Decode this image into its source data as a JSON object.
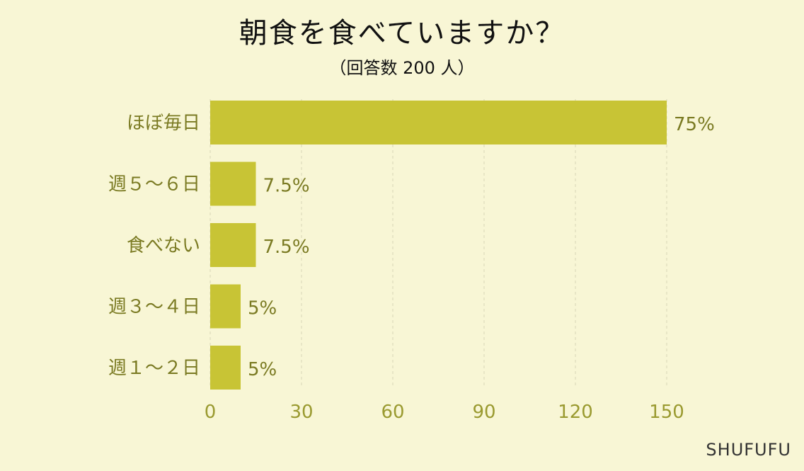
{
  "chart_data": {
    "type": "bar",
    "orientation": "horizontal",
    "title": "朝食を食べていますか？",
    "subtitle": "（回答数 200 人）",
    "categories": [
      "ほぼ毎日",
      "週５～６日",
      "食べない",
      "週３～４日",
      "週１～２日"
    ],
    "values": [
      150,
      15,
      15,
      10,
      10
    ],
    "data_labels": [
      "75%",
      "7.5%",
      "7.5%",
      "5%",
      "5%"
    ],
    "xlim": [
      0,
      150
    ],
    "xticks": [
      0,
      30,
      60,
      90,
      120,
      150
    ],
    "grid": "vertical-dashed",
    "bar_color": "#c8c435"
  },
  "brand": "SHUFUFU"
}
